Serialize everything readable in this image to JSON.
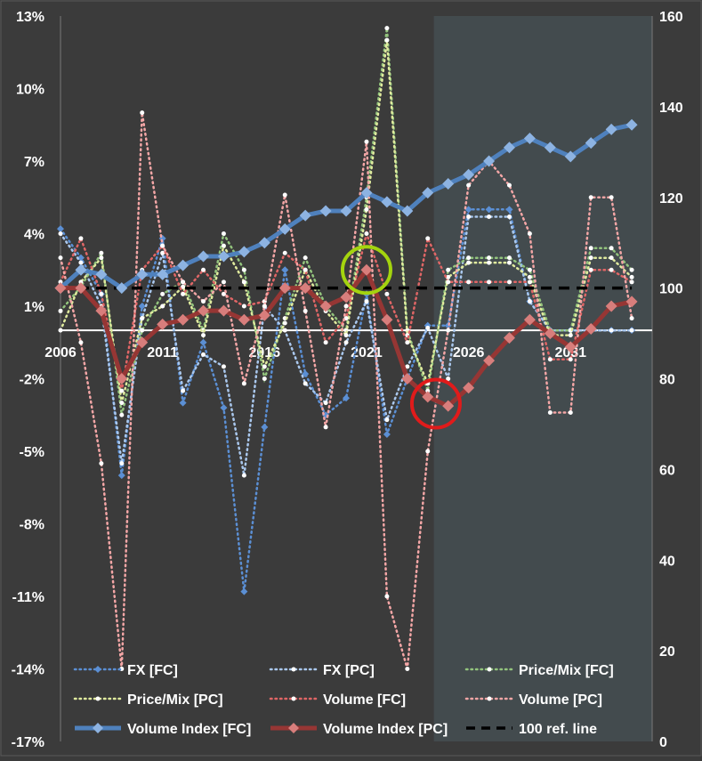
{
  "chart_data": {
    "type": "line",
    "background": "#3b3b3b",
    "forecast_shade_color": "#434b4e",
    "forecast_shade_start": 2024.3,
    "x": [
      2006,
      2007,
      2008,
      2009,
      2010,
      2011,
      2012,
      2013,
      2014,
      2015,
      2016,
      2017,
      2018,
      2019,
      2020,
      2021,
      2022,
      2023,
      2024,
      2025,
      2026,
      2027,
      2028,
      2029,
      2030,
      2031,
      2032,
      2033,
      2034
    ],
    "x_tick_values": [
      2006,
      2011,
      2016,
      2021,
      2026,
      2031
    ],
    "x_tick_labels": [
      "2006",
      "2011",
      "2016",
      "2021",
      "2026",
      "2031"
    ],
    "left_axis": {
      "ylim": [
        -0.17,
        0.13
      ],
      "tick_values": [
        0.13,
        0.1,
        0.07,
        0.04,
        0.01,
        -0.02,
        -0.05,
        -0.08,
        -0.11,
        -0.14,
        -0.17
      ],
      "tick_labels": [
        "13%",
        "10%",
        "7%",
        "4%",
        "1%",
        "-2%",
        "-5%",
        "-8%",
        "-11%",
        "-14%",
        "-17%"
      ],
      "zero_line": true
    },
    "right_axis": {
      "ylim": [
        0,
        160
      ],
      "tick_values": [
        160,
        140,
        120,
        100,
        80,
        60,
        40,
        20,
        0
      ],
      "tick_labels": [
        "160",
        "140",
        "120",
        "100",
        "80",
        "60",
        "40",
        "20",
        "0"
      ]
    },
    "series": [
      {
        "name": "FX [FC]",
        "axis": "left",
        "style": "dotted",
        "color": "#5b8fd4",
        "marker": "diamond",
        "values": [
          0.042,
          0.03,
          0.015,
          -0.06,
          0.01,
          0.038,
          -0.03,
          -0.005,
          -0.032,
          -0.108,
          -0.04,
          0.025,
          -0.018,
          -0.035,
          -0.028,
          0.015,
          -0.043,
          -0.02,
          0.002,
          0.002,
          0.05,
          0.05,
          0.05,
          0.012,
          0.0,
          0.0,
          0.0,
          0.0,
          0.0
        ]
      },
      {
        "name": "FX [PC]",
        "axis": "left",
        "style": "dotted",
        "color": "#aac8ee",
        "marker": "circle",
        "values": [
          0.04,
          0.028,
          0.01,
          -0.055,
          0.005,
          0.032,
          -0.025,
          -0.01,
          -0.015,
          -0.06,
          0.01,
          0.0,
          -0.022,
          -0.03,
          -0.005,
          0.012,
          -0.037,
          -0.015,
          0.001,
          -0.02,
          0.047,
          0.047,
          0.047,
          0.012,
          0.0,
          0.0,
          0.0,
          0.0,
          0.0
        ]
      },
      {
        "name": "Price/Mix [FC]",
        "axis": "left",
        "style": "dotted",
        "color": "#93c47d",
        "marker": "circle",
        "values": [
          0.008,
          0.018,
          0.032,
          -0.035,
          0.0,
          0.015,
          0.02,
          0.0,
          0.04,
          0.025,
          -0.02,
          0.005,
          0.03,
          0.01,
          0.0,
          0.055,
          0.125,
          0.0,
          -0.025,
          0.025,
          0.03,
          0.03,
          0.03,
          0.025,
          0.0,
          0.0,
          0.034,
          0.034,
          0.025
        ]
      },
      {
        "name": "Price/Mix [PC]",
        "axis": "left",
        "style": "dotted",
        "color": "#e0eb9e",
        "marker": "circle",
        "values": [
          0.0,
          0.02,
          0.03,
          -0.03,
          0.005,
          0.01,
          0.018,
          -0.002,
          0.035,
          0.02,
          -0.015,
          0.003,
          0.025,
          0.008,
          -0.002,
          0.05,
          0.12,
          -0.002,
          -0.022,
          0.022,
          0.028,
          0.028,
          0.028,
          0.022,
          -0.002,
          -0.002,
          0.03,
          0.03,
          0.022
        ]
      },
      {
        "name": "Volume [FC]",
        "axis": "left",
        "style": "dotted",
        "color": "#e06666",
        "marker": "circle",
        "values": [
          0.02,
          0.038,
          0.015,
          -0.025,
          0.025,
          0.035,
          0.015,
          0.025,
          0.015,
          0.01,
          0.012,
          0.032,
          0.025,
          -0.005,
          0.005,
          0.04,
          0.015,
          -0.005,
          0.038,
          0.02,
          0.02,
          0.02,
          0.02,
          0.02,
          -0.012,
          -0.012,
          0.025,
          0.025,
          0.02
        ]
      },
      {
        "name": "Volume [PC]",
        "axis": "left",
        "style": "dotted",
        "color": "#f4a6a6",
        "marker": "circle",
        "values": [
          0.03,
          -0.005,
          -0.055,
          -0.14,
          0.09,
          0.035,
          0.02,
          0.012,
          0.02,
          -0.022,
          0.01,
          0.056,
          0.008,
          -0.04,
          0.01,
          0.078,
          -0.11,
          -0.14,
          -0.05,
          0.0,
          0.06,
          0.07,
          0.06,
          0.04,
          -0.034,
          -0.034,
          0.055,
          0.055,
          0.005
        ]
      },
      {
        "name": "Volume Index [FC]",
        "axis": "right",
        "style": "solid",
        "color": "#4f81bd",
        "marker": "diamond",
        "values": [
          100,
          104,
          103,
          100,
          103,
          103,
          105,
          107,
          107,
          108,
          110,
          113,
          116,
          117,
          117,
          121,
          119,
          117,
          121,
          123,
          125,
          128,
          131,
          133,
          131,
          129,
          132,
          135,
          136
        ]
      },
      {
        "name": "Volume Index [PC]",
        "axis": "right",
        "style": "solid",
        "color": "#963634",
        "marker": "diamond",
        "values": [
          100,
          100,
          95,
          80,
          88,
          92,
          93,
          95,
          95,
          93,
          94,
          100,
          100,
          96,
          98,
          104,
          93,
          80,
          76,
          74,
          78,
          84,
          89,
          93,
          90,
          87,
          91,
          96,
          97
        ]
      },
      {
        "name": "100 ref. line",
        "axis": "right",
        "style": "dashed",
        "color": "#000000",
        "marker": "none",
        "values": [
          100,
          100,
          100,
          100,
          100,
          100,
          100,
          100,
          100,
          100,
          100,
          100,
          100,
          100,
          100,
          100,
          100,
          100,
          100,
          100,
          100,
          100,
          100,
          100,
          100,
          100,
          100,
          100,
          100
        ]
      }
    ],
    "annotations": [
      {
        "shape": "ellipse",
        "color": "#a4d40e",
        "x": 2021,
        "right_axis_y": 104
      },
      {
        "shape": "circle",
        "color": "#e01b1b",
        "x": 2024.4,
        "right_axis_y": 74.5
      }
    ],
    "legend_position": "bottom"
  }
}
